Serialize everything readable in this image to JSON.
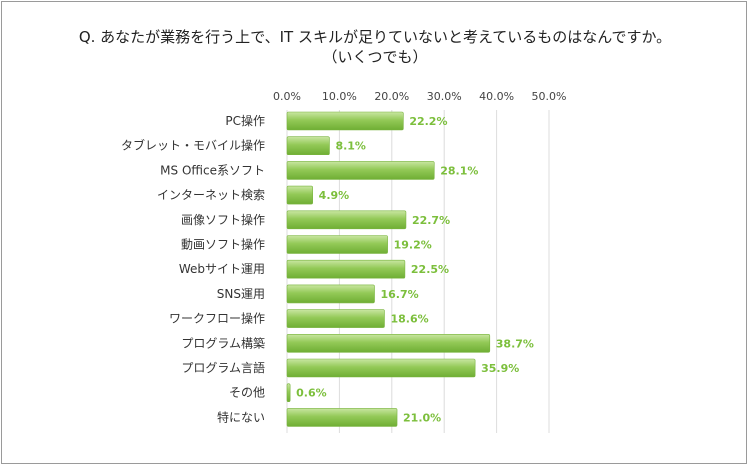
{
  "chart_data": {
    "type": "bar",
    "orientation": "horizontal",
    "title_lines": [
      "Q. あなたが業務を行う上で、IT スキルが足りていないと考えているものはなんですか。",
      "（いくつでも）"
    ],
    "categories": [
      "PC操作",
      "タブレット・モバイル操作",
      "MS Office系ソフト",
      "インターネット検索",
      "画像ソフト操作",
      "動画ソフト操作",
      "Webサイト運用",
      "SNS運用",
      "ワークフロー操作",
      "プログラム構築",
      "プログラム言語",
      "その他",
      "特にない"
    ],
    "values": [
      22.2,
      8.1,
      28.1,
      4.9,
      22.7,
      19.2,
      22.5,
      16.7,
      18.6,
      38.7,
      35.9,
      0.6,
      21.0
    ],
    "value_labels": [
      "22.2%",
      "8.1%",
      "28.1%",
      "4.9%",
      "22.7%",
      "19.2%",
      "22.5%",
      "16.7%",
      "18.6%",
      "38.7%",
      "35.9%",
      "0.6%",
      "21.0%"
    ],
    "ticks": [
      0,
      10,
      20,
      30,
      40,
      50
    ],
    "tick_labels": [
      "0.0%",
      "10.0%",
      "20.0%",
      "30.0%",
      "40.0%",
      "50.0%"
    ],
    "xlim": [
      0,
      50
    ],
    "axis_position": "top",
    "grid": true,
    "bar_color": "#8cc34a",
    "label_color": "#7cbf3c"
  }
}
